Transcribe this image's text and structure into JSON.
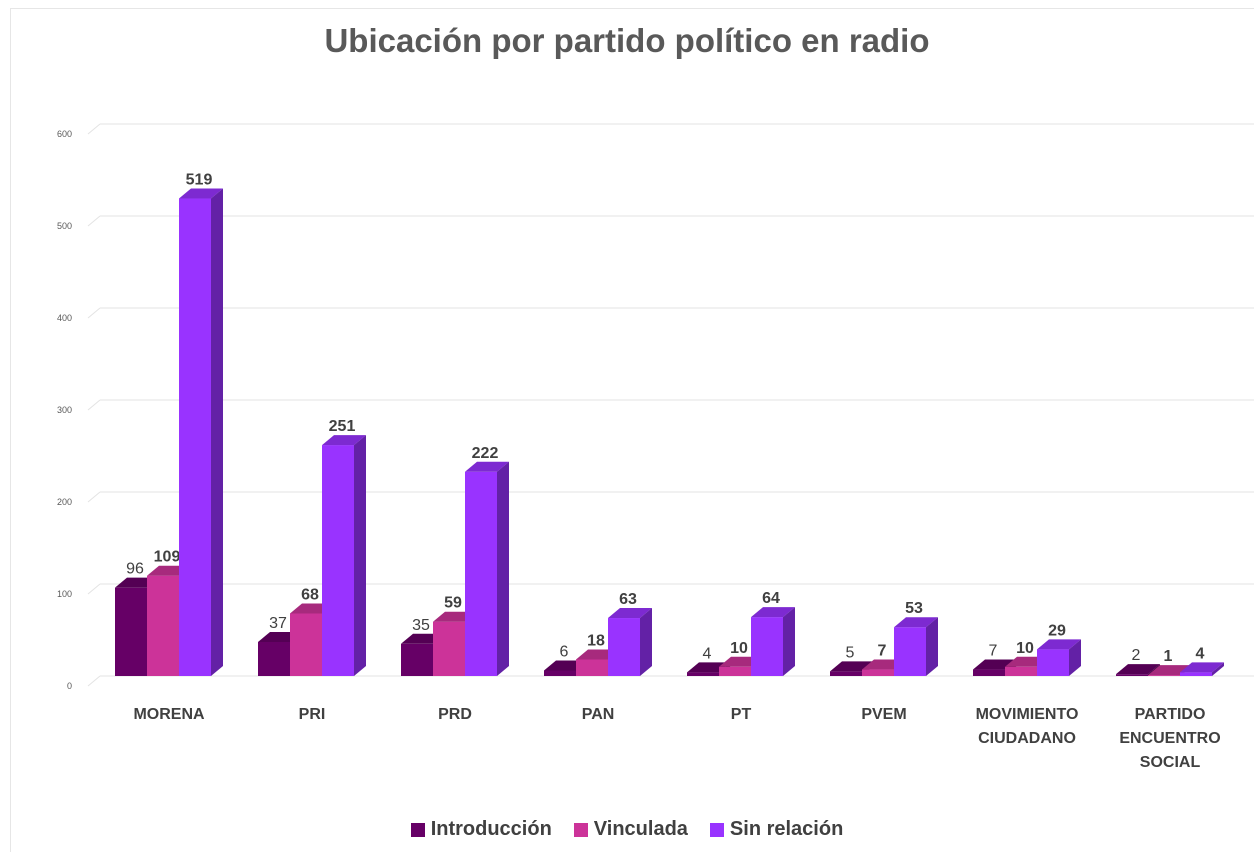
{
  "chart_data": {
    "type": "bar",
    "title": "Ubicación por partido político en radio",
    "categories": [
      [
        "MORENA"
      ],
      [
        "PRI"
      ],
      [
        "PRD"
      ],
      [
        "PAN"
      ],
      [
        "PT"
      ],
      [
        "PVEM"
      ],
      [
        "MOVIMIENTO",
        "CIUDADANO"
      ],
      [
        "PARTIDO",
        "ENCUENTRO",
        "SOCIAL"
      ]
    ],
    "series": [
      {
        "name": "Introducción",
        "color": "#660066",
        "values": [
          96,
          37,
          35,
          6,
          4,
          5,
          7,
          2
        ],
        "label_bold": false
      },
      {
        "name": "Vinculada",
        "color": "#cc3399",
        "values": [
          109,
          68,
          59,
          18,
          10,
          7,
          10,
          1
        ],
        "label_bold": true
      },
      {
        "name": "Sin relación",
        "color": "#9933ff",
        "values": [
          519,
          251,
          222,
          63,
          64,
          53,
          29,
          4
        ],
        "label_bold": true
      }
    ],
    "ylim": [
      0,
      600
    ],
    "yticks": [
      0,
      100,
      200,
      300,
      400,
      500,
      600
    ],
    "ytick_labels": [
      "0",
      "100",
      "200",
      "300",
      "400",
      "500",
      "600"
    ],
    "grid": true,
    "legend": "bottom",
    "style": "3d-column"
  }
}
